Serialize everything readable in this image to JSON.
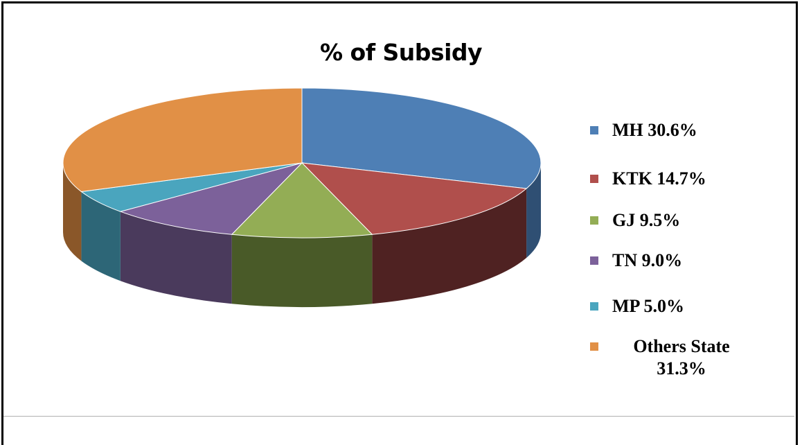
{
  "chart_data": {
    "type": "pie",
    "title": "% of Subsidy",
    "labels": [
      "MH",
      "KTK",
      "GJ",
      "TN",
      "MP",
      "Others State"
    ],
    "values": [
      30.6,
      14.7,
      9.5,
      9.0,
      5.0,
      31.3
    ],
    "legend_labels": [
      "MH 30.6%",
      "KTK 14.7%",
      "GJ 9.5%",
      "TN 9.0%",
      "MP 5.0%",
      "Others State\n31.3%"
    ],
    "colors": [
      "#4e7fb5",
      "#b04f4c",
      "#93ad55",
      "#7c619a",
      "#4aa5be",
      "#e19046"
    ],
    "side_colors": [
      "#2f4f73",
      "#4f2222",
      "#495a28",
      "#4a3a5c",
      "#2d6677",
      "#8a5729"
    ],
    "style": "3d-tilted",
    "legend_position": "right"
  }
}
